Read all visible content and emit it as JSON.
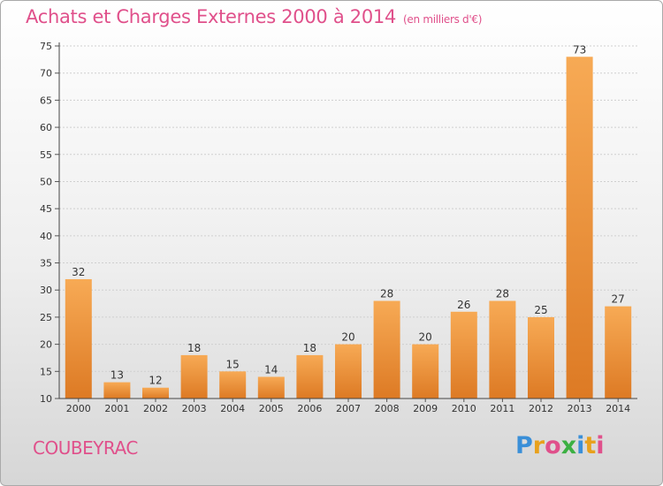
{
  "header": {
    "title": "Achats et Charges Externes 2000 à 2014",
    "unit": "(en milliers d'€)"
  },
  "footer": {
    "commune": "COUBEYRAC",
    "brand": "Proxiti"
  },
  "colors": {
    "title": "#e0508b",
    "bar_light": "#f5a54f",
    "bar_dark": "#e07b26",
    "grid": "#c8c8c8",
    "axis": "#444444"
  },
  "chart_data": {
    "type": "bar",
    "title": "Achats et Charges Externes 2000 à 2014",
    "xlabel": "",
    "ylabel": "",
    "categories": [
      "2000",
      "2001",
      "2002",
      "2003",
      "2004",
      "2005",
      "2006",
      "2007",
      "2008",
      "2009",
      "2010",
      "2011",
      "2012",
      "2013",
      "2014"
    ],
    "values": [
      32,
      13,
      12,
      18,
      15,
      14,
      18,
      20,
      28,
      20,
      26,
      28,
      25,
      73,
      27
    ],
    "ylim": [
      10,
      75
    ],
    "yticks": [
      10,
      15,
      20,
      25,
      30,
      35,
      40,
      45,
      50,
      55,
      60,
      65,
      70,
      75
    ],
    "grid": true,
    "data_labels": true
  }
}
